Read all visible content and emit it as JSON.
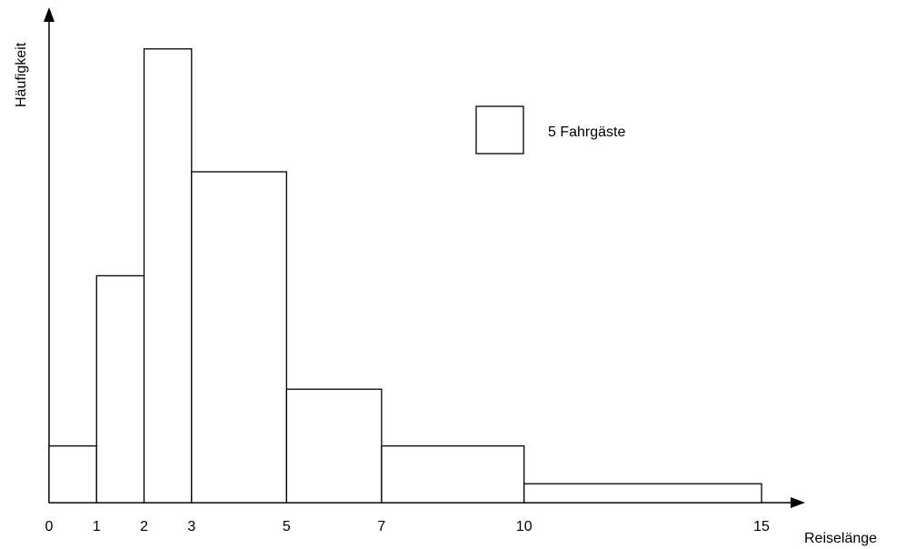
{
  "chart_data": {
    "type": "bar",
    "xlabel": "Reiselänge",
    "ylabel": "Häufigkeit",
    "x_ticks": [
      0,
      1,
      2,
      3,
      5,
      7,
      10,
      15
    ],
    "bins": [
      {
        "from": 0,
        "to": 1,
        "height": 1.2
      },
      {
        "from": 1,
        "to": 2,
        "height": 4.8
      },
      {
        "from": 2,
        "to": 3,
        "height": 9.6
      },
      {
        "from": 3,
        "to": 5,
        "height": 7.0
      },
      {
        "from": 5,
        "to": 7,
        "height": 2.4
      },
      {
        "from": 7,
        "to": 10,
        "height": 1.2
      },
      {
        "from": 10,
        "to": 15,
        "height": 0.4
      }
    ],
    "xlim": [
      0,
      15
    ],
    "ylim": [
      0,
      10
    ],
    "legend": {
      "label": "5 Fahrgäste",
      "placement": "top-right"
    },
    "grid": false
  }
}
